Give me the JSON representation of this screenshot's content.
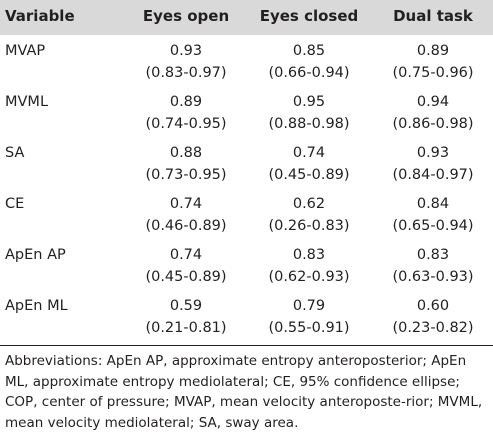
{
  "table": {
    "headers": [
      "Variable",
      "Eyes open",
      "Eyes closed",
      "Dual task"
    ],
    "rows": [
      {
        "variable": "MVAP",
        "cells": [
          {
            "value": "0.93",
            "ci": "(0.83-0.97)"
          },
          {
            "value": "0.85",
            "ci": "(0.66-0.94)"
          },
          {
            "value": "0.89",
            "ci": "(0.75-0.96)"
          }
        ]
      },
      {
        "variable": "MVML",
        "cells": [
          {
            "value": "0.89",
            "ci": "(0.74-0.95)"
          },
          {
            "value": "0.95",
            "ci": "(0.88-0.98)"
          },
          {
            "value": "0.94",
            "ci": "(0.86-0.98)"
          }
        ]
      },
      {
        "variable": "SA",
        "cells": [
          {
            "value": "0.88",
            "ci": "(0.73-0.95)"
          },
          {
            "value": "0.74",
            "ci": "(0.45-0.89)"
          },
          {
            "value": "0.93",
            "ci": "(0.84-0.97)"
          }
        ]
      },
      {
        "variable": "CE",
        "cells": [
          {
            "value": "0.74",
            "ci": "(0.46-0.89)"
          },
          {
            "value": "0.62",
            "ci": "(0.26-0.83)"
          },
          {
            "value": "0.84",
            "ci": "(0.65-0.94)"
          }
        ]
      },
      {
        "variable": "ApEn AP",
        "cells": [
          {
            "value": "0.74",
            "ci": "(0.45-0.89)"
          },
          {
            "value": "0.83",
            "ci": "(0.62-0.93)"
          },
          {
            "value": "0.83",
            "ci": "(0.63-0.93)"
          }
        ]
      },
      {
        "variable": "ApEn ML",
        "cells": [
          {
            "value": "0.59",
            "ci": "(0.21-0.81)"
          },
          {
            "value": "0.79",
            "ci": "(0.55-0.91)"
          },
          {
            "value": "0.60",
            "ci": "(0.23-0.82)"
          }
        ]
      }
    ]
  },
  "footnote": "Abbreviations: ApEn AP, approximate entropy anteroposterior; ApEn ML, approximate entropy mediolateral; CE, 95% confidence ellipse; COP, center of pressure; MVAP, mean velocity anteroposte-rior; MVML, mean velocity mediolateral; SA, sway area.",
  "colors": {
    "header_background": "#d9d9d9",
    "text": "#231f20"
  }
}
